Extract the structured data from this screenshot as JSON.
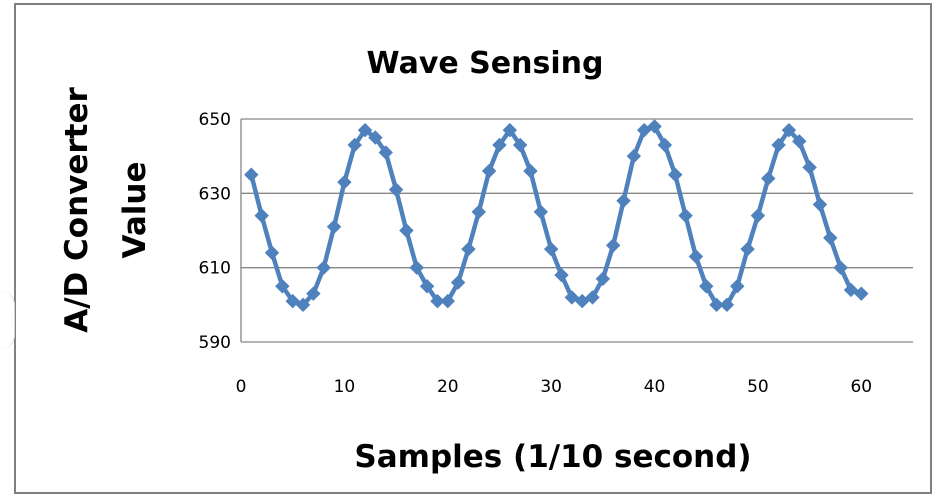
{
  "chart_data": {
    "type": "line",
    "title": "Wave Sensing",
    "xlabel": "Samples (1/10 second)",
    "ylabel_lines": [
      "A/D Converter",
      "Value"
    ],
    "xlim": [
      0,
      65
    ],
    "ylim": [
      590,
      650
    ],
    "x_ticks": [
      "0",
      "10",
      "20",
      "30",
      "40",
      "50",
      "60"
    ],
    "y_ticks": [
      "590",
      "610",
      "630",
      "650"
    ],
    "grid": "horizontal",
    "legend": "none",
    "series": [
      {
        "color": "#4f81bd",
        "marker": "diamond",
        "x": [
          1,
          2,
          3,
          4,
          5,
          6,
          7,
          8,
          9,
          10,
          11,
          12,
          13,
          14,
          15,
          16,
          17,
          18,
          19,
          20,
          21,
          22,
          23,
          24,
          25,
          26,
          27,
          28,
          29,
          30,
          31,
          32,
          33,
          34,
          35,
          36,
          37,
          38,
          39,
          40,
          41,
          42,
          43,
          44,
          45,
          46,
          47,
          48,
          49,
          50,
          51,
          52,
          53,
          54,
          55,
          56,
          57,
          58,
          59,
          60
        ],
        "y": [
          635,
          624,
          614,
          605,
          601,
          600,
          603,
          610,
          621,
          633,
          643,
          647,
          645,
          641,
          631,
          620,
          610,
          605,
          601,
          601,
          606,
          615,
          625,
          636,
          643,
          647,
          643,
          636,
          625,
          615,
          608,
          602,
          601,
          602,
          607,
          616,
          628,
          640,
          647,
          648,
          643,
          635,
          624,
          613,
          605,
          600,
          600,
          605,
          615,
          624,
          634,
          643,
          647,
          644,
          637,
          627,
          618,
          610,
          604,
          603
        ]
      }
    ]
  }
}
